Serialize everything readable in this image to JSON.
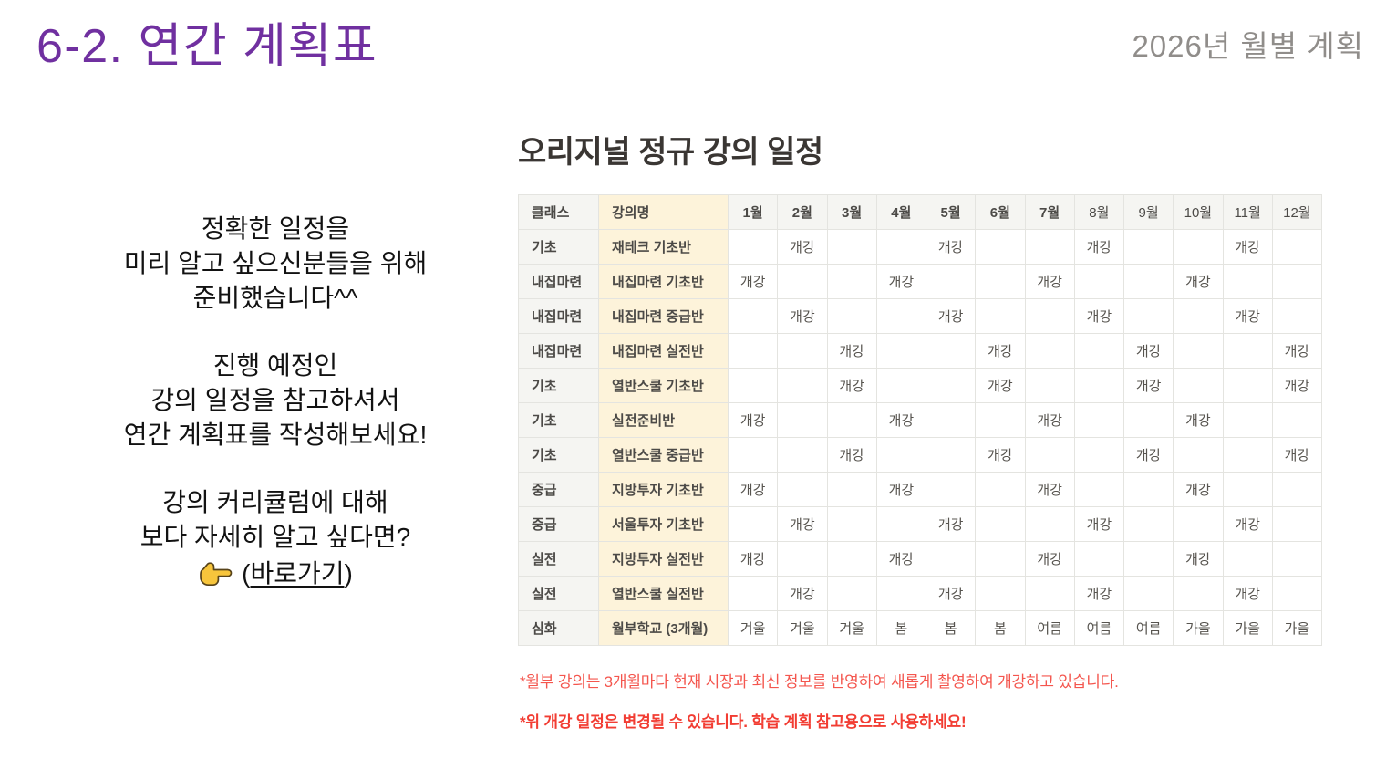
{
  "page": {
    "title": "6-2. 연간 계획표",
    "corner_label": "2026년 월별 계획"
  },
  "intro": {
    "paragraphs": [
      [
        "정확한 일정을",
        "미리 알고 싶으신분들을 위해",
        "준비했습니다^^"
      ],
      [
        "진행 예정인",
        "강의 일정을 참고하셔서",
        "연간 계획표를 작성해보세요!"
      ],
      [
        "강의 커리큘럼에 대해",
        "보다 자세히 알고 싶다면?"
      ]
    ],
    "pointer_icon": "pointing-finger-icon",
    "link_prefix": "(",
    "link_label": "바로가기",
    "link_suffix": ")"
  },
  "schedule": {
    "title": "오리지널 정규 강의 일정",
    "columns": [
      "클래스",
      "강의명",
      "1월",
      "2월",
      "3월",
      "4월",
      "5월",
      "6월",
      "7월",
      "8월",
      "9월",
      "10월",
      "11월",
      "12월"
    ],
    "bold_month_count": 7,
    "open_label": "개강",
    "rows": [
      {
        "class": "기초",
        "course": "재테크 기초반",
        "months": [
          "",
          "개강",
          "",
          "",
          "개강",
          "",
          "",
          "개강",
          "",
          "",
          "개강",
          ""
        ]
      },
      {
        "class": "내집마련",
        "course": "내집마련 기초반",
        "months": [
          "개강",
          "",
          "",
          "개강",
          "",
          "",
          "개강",
          "",
          "",
          "개강",
          "",
          ""
        ]
      },
      {
        "class": "내집마련",
        "course": "내집마련 중급반",
        "months": [
          "",
          "개강",
          "",
          "",
          "개강",
          "",
          "",
          "개강",
          "",
          "",
          "개강",
          ""
        ]
      },
      {
        "class": "내집마련",
        "course": "내집마련 실전반",
        "months": [
          "",
          "",
          "개강",
          "",
          "",
          "개강",
          "",
          "",
          "개강",
          "",
          "",
          "개강"
        ]
      },
      {
        "class": "기초",
        "course": "열반스쿨 기초반",
        "months": [
          "",
          "",
          "개강",
          "",
          "",
          "개강",
          "",
          "",
          "개강",
          "",
          "",
          "개강"
        ]
      },
      {
        "class": "기초",
        "course": "실전준비반",
        "months": [
          "개강",
          "",
          "",
          "개강",
          "",
          "",
          "개강",
          "",
          "",
          "개강",
          "",
          ""
        ]
      },
      {
        "class": "기초",
        "course": "열반스쿨 중급반",
        "months": [
          "",
          "",
          "개강",
          "",
          "",
          "개강",
          "",
          "",
          "개강",
          "",
          "",
          "개강"
        ]
      },
      {
        "class": "중급",
        "course": "지방투자 기초반",
        "months": [
          "개강",
          "",
          "",
          "개강",
          "",
          "",
          "개강",
          "",
          "",
          "개강",
          "",
          ""
        ]
      },
      {
        "class": "중급",
        "course": "서울투자 기초반",
        "months": [
          "",
          "개강",
          "",
          "",
          "개강",
          "",
          "",
          "개강",
          "",
          "",
          "개강",
          ""
        ]
      },
      {
        "class": "실전",
        "course": "지방투자 실전반",
        "months": [
          "개강",
          "",
          "",
          "개강",
          "",
          "",
          "개강",
          "",
          "",
          "개강",
          "",
          ""
        ]
      },
      {
        "class": "실전",
        "course": "열반스쿨 실전반",
        "months": [
          "",
          "개강",
          "",
          "",
          "개강",
          "",
          "",
          "개강",
          "",
          "",
          "개강",
          ""
        ]
      },
      {
        "class": "심화",
        "course": "월부학교 (3개월)",
        "months": [
          "겨울",
          "겨울",
          "겨울",
          "봄",
          "봄",
          "봄",
          "여름",
          "여름",
          "여름",
          "가을",
          "가을",
          "가을"
        ]
      }
    ],
    "footnotes": [
      "*월부 강의는 3개월마다 현재 시장과 최신 정보를 반영하여 새롭게 촬영하여 개강하고 있습니다.",
      "*위 개강 일정은 변경될 수 있습니다. 학습 계획 참고용으로 사용하세요!"
    ]
  },
  "colors": {
    "title_purple": "#7030a0",
    "corner_gray": "#908d8a",
    "course_col_cream": "#fdf3da",
    "class_col_gray": "#f5f5f2",
    "table_border": "#e4e4e0",
    "note_red": "#f4564e",
    "note_red_bold": "#f23d33",
    "pointer_yellow": "#f7c53c"
  }
}
